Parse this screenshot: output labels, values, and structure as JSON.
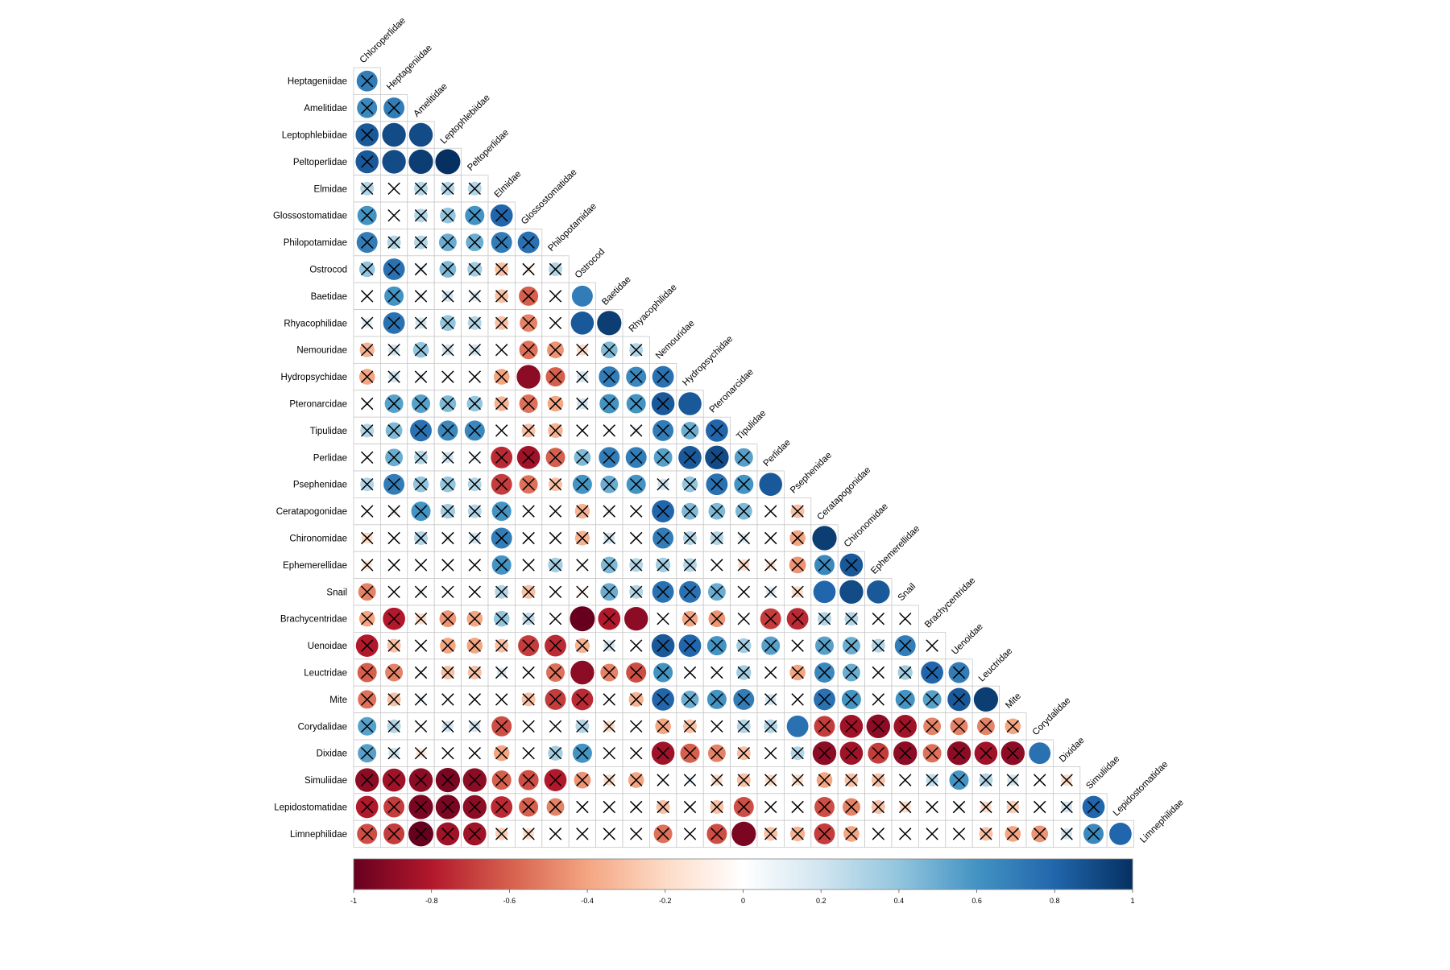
{
  "chart_data": {
    "type": "heatmap",
    "title": "",
    "xlabel": "",
    "ylabel": "",
    "layout": "lower-triangular correlation matrix (corrplot style); column labels on the diagonal rotated 45 degrees",
    "glyph": "circle scaled by |r|, colored by r; black X marks cells flagged non-significant",
    "color_scale": {
      "min": -1,
      "max": 1,
      "stops": [
        "#67001F",
        "#B2182B",
        "#D6604D",
        "#F4A582",
        "#FDDBC7",
        "#FFFFFF",
        "#D1E5F0",
        "#92C5DE",
        "#4393C3",
        "#2166AC",
        "#053061"
      ],
      "ticks": [
        -1,
        -0.8,
        -0.6,
        -0.4,
        -0.2,
        0,
        0.2,
        0.4,
        0.6,
        0.8,
        1
      ],
      "tick_labels": [
        "-1",
        "-0.8",
        "-0.6",
        "-0.4",
        "-0.2",
        "0",
        "0.2",
        "0.4",
        "0.6",
        "0.8",
        "1"
      ]
    },
    "variables": [
      "Chloroperlidae",
      "Heptageniidae",
      "Amelitidae",
      "Leptophlebiidae",
      "Peltoperlidae",
      "Elmidae",
      "Glossostomatidae",
      "Philopotamidae",
      "Ostrocod",
      "Baetidae",
      "Rhyacophilidae",
      "Nemouridae",
      "Hydropsychidae",
      "Pteronarcidae",
      "Tipulidae",
      "Perlidae",
      "Psephenidae",
      "Ceratapogonidae",
      "Chironomidae",
      "Ephemerellidae",
      "Snail",
      "Brachycentridae",
      "Uenoidae",
      "Leuctridae",
      "Mite",
      "Corydalidae",
      "Dixidae",
      "Simuliidae",
      "Lepidostomatidae",
      "Limnephilidae"
    ],
    "correlations": [
      [
        0.7
      ],
      [
        0.65,
        0.7
      ],
      [
        0.85,
        0.9,
        0.9
      ],
      [
        0.85,
        0.9,
        0.95,
        1.0
      ],
      [
        0.3,
        0.0,
        0.3,
        0.3,
        0.3
      ],
      [
        0.6,
        0.0,
        0.3,
        0.4,
        0.6,
        0.8
      ],
      [
        0.7,
        0.3,
        0.3,
        0.5,
        0.5,
        0.7,
        0.75
      ],
      [
        0.4,
        0.75,
        0.1,
        0.45,
        0.35,
        -0.3,
        -0.1,
        0.3
      ],
      [
        0.0,
        0.6,
        0.1,
        0.2,
        0.15,
        -0.3,
        -0.6,
        0.0,
        0.7
      ],
      [
        0.15,
        0.75,
        0.2,
        0.4,
        0.3,
        -0.3,
        -0.5,
        0.0,
        0.85,
        0.95
      ],
      [
        -0.35,
        0.2,
        0.4,
        0.2,
        0.2,
        0.0,
        -0.55,
        -0.45,
        -0.2,
        0.45,
        0.3
      ],
      [
        -0.4,
        0.2,
        0.1,
        0.0,
        0.0,
        -0.4,
        -0.9,
        -0.6,
        0.2,
        0.7,
        0.65,
        0.75
      ],
      [
        0.0,
        0.55,
        0.55,
        0.45,
        0.4,
        -0.35,
        -0.55,
        -0.4,
        0.2,
        0.6,
        0.6,
        0.85,
        0.85
      ],
      [
        0.3,
        0.45,
        0.75,
        0.65,
        0.65,
        0.0,
        -0.3,
        -0.35,
        0.0,
        0.05,
        0.1,
        0.7,
        0.5,
        0.8
      ],
      [
        0.0,
        0.5,
        0.3,
        0.2,
        0.1,
        -0.75,
        -0.85,
        -0.6,
        0.45,
        0.7,
        0.7,
        0.55,
        0.85,
        0.9,
        0.55
      ],
      [
        0.3,
        0.7,
        0.4,
        0.4,
        0.3,
        -0.7,
        -0.55,
        -0.3,
        0.6,
        0.5,
        0.6,
        0.2,
        0.4,
        0.75,
        0.6,
        0.85
      ],
      [
        0.0,
        0.1,
        0.6,
        0.35,
        0.3,
        0.6,
        0.0,
        0.0,
        -0.35,
        0.1,
        0.0,
        0.8,
        0.45,
        0.45,
        0.45,
        0.0,
        -0.3
      ],
      [
        -0.2,
        0.0,
        0.3,
        0.1,
        0.2,
        0.7,
        0.0,
        0.0,
        -0.35,
        0.2,
        0.0,
        0.7,
        0.3,
        0.3,
        0.15,
        0.0,
        -0.4,
        0.95
      ],
      [
        -0.15,
        0.0,
        0.0,
        0.0,
        0.0,
        0.6,
        0.0,
        0.35,
        0.0,
        0.45,
        0.3,
        0.35,
        0.3,
        0.0,
        -0.2,
        -0.15,
        -0.45,
        0.65,
        0.85
      ],
      [
        -0.5,
        0.0,
        0.1,
        0.0,
        0.0,
        0.3,
        -0.3,
        0.0,
        -0.1,
        0.5,
        0.3,
        0.75,
        0.75,
        0.5,
        0.0,
        0.15,
        -0.2,
        0.8,
        0.9,
        0.85
      ],
      [
        -0.4,
        -0.8,
        -0.2,
        -0.45,
        -0.4,
        0.4,
        0.25,
        0.0,
        -1.0,
        -0.8,
        -0.9,
        0.0,
        -0.4,
        -0.45,
        0.0,
        -0.7,
        -0.75,
        0.3,
        0.3,
        0.0,
        0.0
      ],
      [
        -0.8,
        -0.3,
        0.0,
        -0.4,
        -0.4,
        -0.3,
        -0.7,
        -0.75,
        -0.35,
        0.2,
        0.0,
        0.85,
        0.8,
        0.6,
        0.35,
        0.55,
        0.0,
        0.55,
        0.5,
        0.3,
        0.7,
        0.0
      ],
      [
        -0.6,
        -0.5,
        0.0,
        -0.3,
        -0.3,
        0.15,
        0.0,
        -0.55,
        -0.9,
        -0.5,
        -0.65,
        0.6,
        0.0,
        0.0,
        0.35,
        0.0,
        -0.4,
        0.65,
        0.5,
        0.0,
        0.35,
        0.8,
        0.7
      ],
      [
        -0.55,
        -0.3,
        0.1,
        0.0,
        0.0,
        0.0,
        -0.3,
        -0.7,
        -0.75,
        0.0,
        -0.35,
        0.8,
        0.5,
        0.6,
        0.7,
        0.2,
        0.0,
        0.75,
        0.6,
        0.0,
        0.6,
        0.55,
        0.85,
        0.95
      ],
      [
        0.55,
        0.3,
        0.0,
        0.2,
        0.2,
        -0.65,
        0.0,
        0.0,
        0.3,
        -0.2,
        0.0,
        -0.4,
        -0.3,
        0.0,
        0.3,
        0.3,
        0.75,
        -0.7,
        -0.85,
        -0.9,
        -0.85,
        -0.5,
        -0.5,
        -0.5,
        -0.4
      ],
      [
        0.55,
        0.2,
        -0.15,
        0.0,
        0.0,
        -0.4,
        0.0,
        0.35,
        0.6,
        0.0,
        0.0,
        -0.85,
        -0.6,
        -0.5,
        -0.3,
        0.0,
        0.3,
        -0.9,
        -0.85,
        -0.7,
        -0.9,
        -0.55,
        -0.9,
        -0.85,
        -0.9,
        0.75
      ],
      [
        -0.9,
        -0.85,
        -0.9,
        -0.95,
        -0.9,
        -0.6,
        -0.65,
        -0.8,
        -0.45,
        -0.2,
        -0.4,
        0.0,
        0.1,
        -0.2,
        -0.3,
        -0.2,
        -0.2,
        -0.4,
        -0.3,
        -0.3,
        0.0,
        0.25,
        0.6,
        0.3,
        0.2,
        0.0,
        -0.2
      ],
      [
        -0.8,
        -0.7,
        -0.95,
        -0.95,
        -0.9,
        -0.75,
        -0.6,
        -0.5,
        0.0,
        0.0,
        0.0,
        -0.3,
        0.0,
        -0.3,
        -0.65,
        0.0,
        0.0,
        -0.65,
        -0.5,
        -0.3,
        -0.2,
        0.0,
        0.1,
        -0.2,
        -0.25,
        0.0,
        0.2,
        0.8
      ],
      [
        -0.65,
        -0.7,
        -1.0,
        -0.85,
        -0.85,
        -0.25,
        -0.2,
        0.0,
        0.0,
        0.0,
        0.0,
        -0.55,
        0.0,
        -0.65,
        -0.95,
        -0.3,
        -0.35,
        -0.7,
        -0.4,
        0.0,
        0.0,
        0.0,
        0.0,
        -0.3,
        -0.4,
        -0.45,
        0.2,
        0.65,
        0.8
      ]
    ],
    "not_significant": [
      [
        true
      ],
      [
        true,
        true
      ],
      [
        true,
        false,
        false
      ],
      [
        true,
        false,
        false,
        false
      ],
      [
        true,
        true,
        true,
        true,
        true
      ],
      [
        true,
        true,
        true,
        true,
        true,
        true
      ],
      [
        true,
        true,
        true,
        true,
        true,
        true,
        true
      ],
      [
        true,
        true,
        true,
        true,
        true,
        true,
        true,
        true
      ],
      [
        true,
        true,
        true,
        true,
        true,
        true,
        true,
        true,
        false
      ],
      [
        true,
        true,
        true,
        true,
        true,
        true,
        true,
        true,
        false,
        false
      ],
      [
        true,
        true,
        true,
        true,
        true,
        true,
        true,
        true,
        true,
        true,
        true
      ],
      [
        true,
        true,
        true,
        true,
        true,
        true,
        false,
        true,
        true,
        true,
        true,
        true
      ],
      [
        true,
        true,
        true,
        true,
        true,
        true,
        true,
        true,
        true,
        true,
        true,
        true,
        false
      ],
      [
        true,
        true,
        true,
        true,
        true,
        true,
        true,
        true,
        true,
        true,
        true,
        true,
        true,
        true
      ],
      [
        true,
        true,
        true,
        true,
        true,
        true,
        true,
        true,
        true,
        true,
        true,
        true,
        true,
        true,
        true
      ],
      [
        true,
        true,
        true,
        true,
        true,
        true,
        true,
        true,
        true,
        true,
        true,
        true,
        true,
        true,
        true,
        false
      ],
      [
        true,
        true,
        true,
        true,
        true,
        true,
        true,
        true,
        true,
        true,
        true,
        true,
        true,
        true,
        true,
        true,
        true
      ],
      [
        true,
        true,
        true,
        true,
        true,
        true,
        true,
        true,
        true,
        true,
        true,
        true,
        true,
        true,
        true,
        true,
        true,
        false
      ],
      [
        true,
        true,
        true,
        true,
        true,
        true,
        true,
        true,
        true,
        true,
        true,
        true,
        true,
        true,
        true,
        true,
        true,
        true,
        true
      ],
      [
        true,
        true,
        true,
        true,
        true,
        true,
        true,
        true,
        true,
        true,
        true,
        true,
        true,
        true,
        true,
        true,
        true,
        false,
        false,
        false
      ],
      [
        true,
        true,
        true,
        true,
        true,
        true,
        true,
        true,
        false,
        true,
        false,
        true,
        true,
        true,
        true,
        true,
        true,
        true,
        true,
        true,
        true
      ],
      [
        true,
        true,
        true,
        true,
        true,
        true,
        true,
        true,
        true,
        true,
        true,
        true,
        true,
        true,
        true,
        true,
        true,
        true,
        true,
        true,
        true,
        true
      ],
      [
        true,
        true,
        true,
        true,
        true,
        true,
        true,
        true,
        false,
        true,
        true,
        true,
        true,
        true,
        true,
        true,
        true,
        true,
        true,
        true,
        true,
        true,
        true
      ],
      [
        true,
        true,
        true,
        true,
        true,
        true,
        true,
        true,
        true,
        true,
        true,
        true,
        true,
        true,
        true,
        true,
        true,
        true,
        true,
        true,
        true,
        true,
        true,
        false
      ],
      [
        true,
        true,
        true,
        true,
        true,
        true,
        true,
        true,
        true,
        true,
        true,
        true,
        true,
        true,
        true,
        true,
        false,
        true,
        true,
        true,
        true,
        true,
        true,
        true,
        true
      ],
      [
        true,
        true,
        true,
        true,
        true,
        true,
        true,
        true,
        true,
        true,
        true,
        true,
        true,
        true,
        true,
        true,
        true,
        true,
        true,
        true,
        true,
        true,
        true,
        true,
        true,
        false
      ],
      [
        true,
        true,
        true,
        true,
        true,
        true,
        true,
        true,
        true,
        true,
        true,
        true,
        true,
        true,
        true,
        true,
        true,
        true,
        true,
        true,
        true,
        true,
        true,
        true,
        true,
        true,
        true
      ],
      [
        true,
        true,
        true,
        true,
        true,
        true,
        true,
        true,
        true,
        true,
        true,
        true,
        true,
        true,
        true,
        true,
        true,
        true,
        true,
        true,
        true,
        true,
        true,
        true,
        true,
        true,
        true,
        true
      ],
      [
        true,
        true,
        true,
        true,
        true,
        true,
        true,
        true,
        true,
        true,
        true,
        true,
        true,
        true,
        false,
        true,
        true,
        true,
        true,
        true,
        true,
        true,
        true,
        true,
        true,
        true,
        true,
        true,
        false
      ]
    ]
  }
}
